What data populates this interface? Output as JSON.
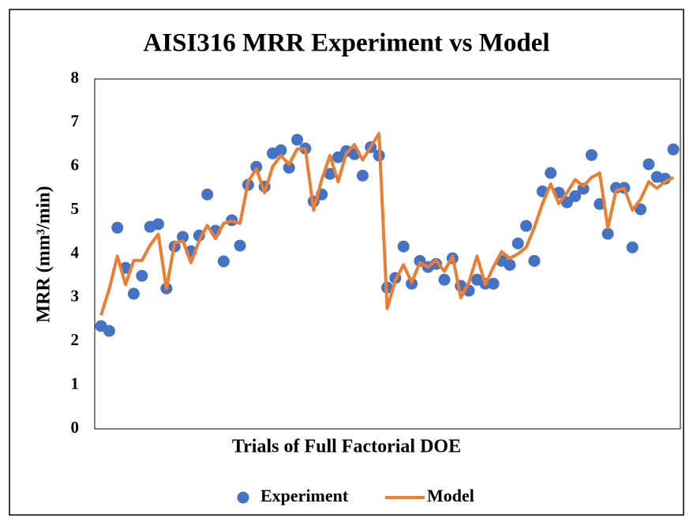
{
  "chart_data": {
    "type": "scatter-line",
    "title": "AISI316 MRR Experiment vs Model",
    "x_label": "Trials of Full Factorial DOE",
    "y_label": "MRR (mm³/min)",
    "categories": [
      null,
      null,
      null,
      null,
      null,
      null,
      null,
      null,
      null,
      null,
      null,
      null,
      null,
      null,
      null,
      null,
      null,
      null,
      null,
      null,
      null,
      null,
      null,
      null,
      null,
      null,
      null,
      null,
      null,
      null,
      null,
      null,
      null,
      null,
      null,
      null,
      null,
      null,
      null,
      null,
      null,
      null,
      null,
      null,
      null,
      null,
      null,
      null,
      null,
      null,
      null,
      null,
      null,
      null,
      null,
      null,
      null,
      null,
      null,
      null,
      null,
      null,
      null,
      null,
      null,
      null,
      null,
      null,
      null,
      null,
      null
    ],
    "series": [
      {
        "name": "Experiment",
        "color": "#4472c4",
        "mark": "marker",
        "values": [
          2.35,
          2.24,
          4.6,
          3.68,
          3.09,
          3.5,
          4.62,
          4.68,
          3.21,
          4.17,
          4.39,
          4.06,
          4.42,
          5.36,
          4.53,
          3.83,
          4.77,
          4.19,
          5.58,
          5.99,
          5.54,
          6.3,
          6.37,
          5.97,
          6.61,
          6.41,
          5.2,
          5.36,
          5.83,
          6.21,
          6.35,
          6.28,
          5.79,
          6.44,
          6.25,
          3.23,
          3.45,
          4.17,
          3.32,
          3.84,
          3.7,
          3.77,
          3.41,
          3.9,
          3.27,
          3.16,
          3.41,
          3.32,
          3.32,
          3.84,
          3.75,
          4.24,
          4.64,
          3.84,
          5.43,
          5.85,
          5.4,
          5.18,
          5.32,
          5.49,
          6.26,
          5.14,
          4.46,
          5.51,
          5.51,
          4.15,
          5.02,
          6.05,
          5.76,
          5.72,
          6.39
        ]
      },
      {
        "name": "Model",
        "color": "#ed7d31",
        "mark": "line",
        "values": [
          2.6,
          3.2,
          3.95,
          3.3,
          3.85,
          3.85,
          4.2,
          4.45,
          3.2,
          4.25,
          4.3,
          3.8,
          4.3,
          4.65,
          4.35,
          4.7,
          4.75,
          4.7,
          5.65,
          5.95,
          5.4,
          6.0,
          6.25,
          6.05,
          6.4,
          6.4,
          5.0,
          5.7,
          6.25,
          5.65,
          6.3,
          6.5,
          6.15,
          6.45,
          6.75,
          2.75,
          3.4,
          3.75,
          3.35,
          3.8,
          3.7,
          3.85,
          3.6,
          3.95,
          3.0,
          3.35,
          3.95,
          3.3,
          3.7,
          4.05,
          3.9,
          4.0,
          4.15,
          4.6,
          5.15,
          5.6,
          5.15,
          5.4,
          5.7,
          5.55,
          5.75,
          5.85,
          4.6,
          5.45,
          5.5,
          5.0,
          5.25,
          5.65,
          5.5,
          5.65,
          5.75
        ]
      }
    ],
    "ylim": [
      0,
      8
    ],
    "yticks": [
      0,
      1,
      2,
      3,
      4,
      5,
      6,
      7,
      8
    ],
    "grid": false,
    "legend": "bottom"
  }
}
